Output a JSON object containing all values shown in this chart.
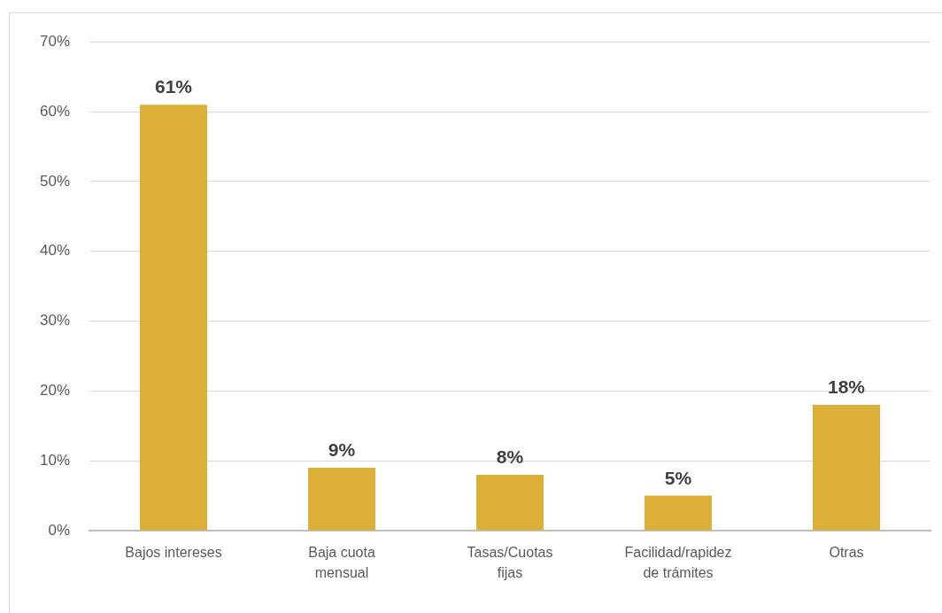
{
  "chart_data": {
    "type": "bar",
    "categories": [
      "Bajos intereses",
      "Baja cuota mensual",
      "Tasas/Cuotas fijas",
      "Facilidad/rapidez de trámites",
      "Otras"
    ],
    "values": [
      61,
      9,
      8,
      5,
      18
    ],
    "value_labels": [
      "61%",
      "9%",
      "8%",
      "5%",
      "18%"
    ],
    "color": "#dcb038",
    "ylim": [
      0,
      70
    ],
    "yticks": [
      {
        "value": 0,
        "label": "0%"
      },
      {
        "value": 10,
        "label": "10%"
      },
      {
        "value": 20,
        "label": "20%"
      },
      {
        "value": 30,
        "label": "30%"
      },
      {
        "value": 40,
        "label": "40%"
      },
      {
        "value": 50,
        "label": "50%"
      },
      {
        "value": 60,
        "label": "60%"
      },
      {
        "value": 70,
        "label": "70%"
      }
    ],
    "grid": "y"
  }
}
